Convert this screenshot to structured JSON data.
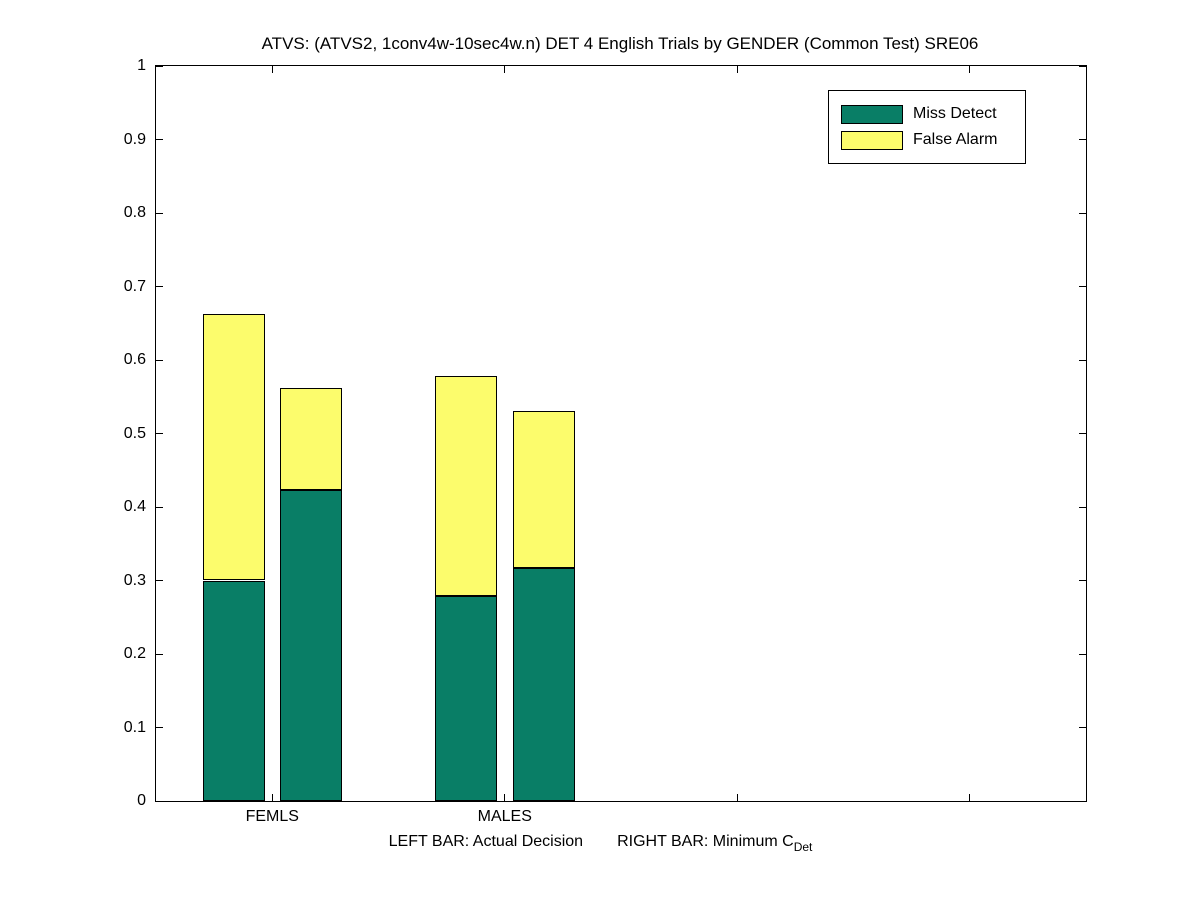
{
  "chart_data": {
    "type": "bar",
    "stacked": true,
    "title": "ATVS: (ATVS2, 1conv4w-10sec4w.n) DET 4 English Trials by GENDER (Common Test) SRE06",
    "categories": [
      "FEMLS",
      "MALES"
    ],
    "bar_kinds": [
      "Actual Decision",
      "Minimum C_Det"
    ],
    "series": [
      {
        "name": "Miss Detect",
        "color": "#097E66",
        "values": [
          [
            0.3,
            0.423
          ],
          [
            0.279,
            0.317
          ]
        ]
      },
      {
        "name": "False Alarm",
        "color": "#FCFC6C",
        "values": [
          [
            0.363,
            0.139
          ],
          [
            0.299,
            0.214
          ]
        ]
      }
    ],
    "bar_totals": [
      [
        0.663,
        0.562
      ],
      [
        0.578,
        0.531
      ]
    ],
    "ylim": [
      0,
      1
    ],
    "yticks": [
      0,
      0.1,
      0.2,
      0.3,
      0.4,
      0.5,
      0.6,
      0.7,
      0.8,
      0.9,
      1
    ],
    "ytick_labels": [
      "0",
      "0.1",
      "0.2",
      "0.3",
      "0.4",
      "0.5",
      "0.6",
      "0.7",
      "0.8",
      "0.9",
      "1"
    ],
    "xlim": [
      0.5,
      4.5
    ],
    "xtick_positions": [
      1,
      2,
      3,
      4
    ],
    "xtick_labels": [
      "FEMLS",
      "MALES",
      "",
      ""
    ],
    "grid": false,
    "legend_position": "top-right",
    "footnote": {
      "left": "LEFT BAR: Actual Decision",
      "right": "RIGHT BAR: Minimum C",
      "right_sub": "Det"
    }
  }
}
